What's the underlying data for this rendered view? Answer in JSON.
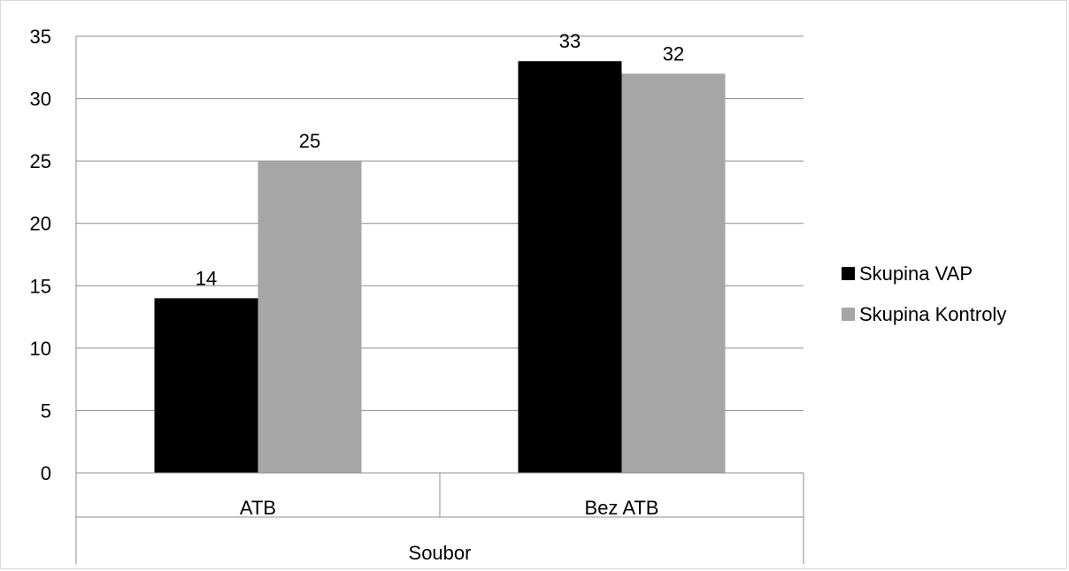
{
  "chart_data": {
    "type": "bar",
    "categories": [
      "ATB",
      "Bez ATB"
    ],
    "group_label": "Soubor",
    "series": [
      {
        "name": "Skupina VAP",
        "values": [
          14,
          33
        ],
        "color": "#000000"
      },
      {
        "name": "Skupina Kontroly",
        "values": [
          25,
          32
        ],
        "color": "#a6a6a6"
      }
    ],
    "yticks": [
      "0",
      "5",
      "10",
      "15",
      "20",
      "25",
      "30",
      "35"
    ],
    "ylim": [
      0,
      35
    ],
    "grid": true,
    "legend_position": "right",
    "data_labels": true
  }
}
